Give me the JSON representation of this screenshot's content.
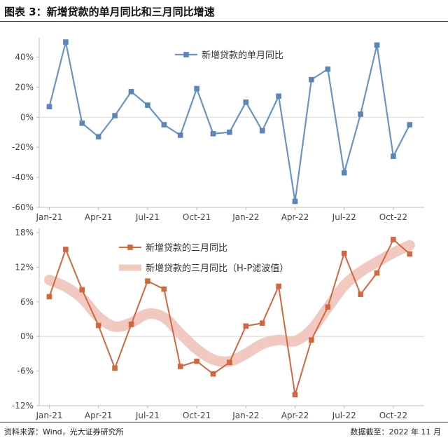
{
  "figure": {
    "title": "图表 3：新增贷款的单月同比和三月同比增速",
    "source": "资料来源：Wind，光大证券研究所",
    "date_note": "数据截至：2022 年 11 月"
  },
  "colors": {
    "top_series": "#6b93c3",
    "top_marker": "#5b84b8",
    "bottom_series": "#d2663f",
    "bottom_trend": "#f2c9c0"
  },
  "chart_data": [
    {
      "type": "line",
      "x": [
        "Jan-21",
        "Feb-21",
        "Mar-21",
        "Apr-21",
        "May-21",
        "Jun-21",
        "Jul-21",
        "Aug-21",
        "Sep-21",
        "Oct-21",
        "Nov-21",
        "Dec-21",
        "Jan-22",
        "Feb-22",
        "Mar-22",
        "Apr-22",
        "May-22",
        "Jun-22",
        "Jul-22",
        "Aug-22",
        "Sep-22",
        "Oct-22",
        "Nov-22"
      ],
      "x_tick_labels": [
        "Jan-21",
        "Apr-21",
        "Jul-21",
        "Oct-21",
        "Jan-22",
        "Apr-22",
        "Jul-22",
        "Oct-22"
      ],
      "series": [
        {
          "name": "新增贷款的单月同比",
          "values": [
            7,
            50,
            -4,
            -13,
            1,
            17,
            8,
            -5,
            -12,
            19,
            -11,
            -10,
            10,
            -9,
            14,
            -56,
            25,
            32,
            -37,
            2,
            48,
            -26,
            -5
          ]
        }
      ],
      "ylim": [
        -60,
        50
      ],
      "y_ticks": [
        -60,
        -40,
        -20,
        0,
        20,
        40
      ],
      "y_tick_labels": [
        "-60%",
        "-40%",
        "-20%",
        "0%",
        "20%",
        "40%"
      ],
      "legend_position": "top-center",
      "grid": false
    },
    {
      "type": "line",
      "x": [
        "Jan-21",
        "Feb-21",
        "Mar-21",
        "Apr-21",
        "May-21",
        "Jun-21",
        "Jul-21",
        "Aug-21",
        "Sep-21",
        "Oct-21",
        "Nov-21",
        "Dec-21",
        "Jan-22",
        "Feb-22",
        "Mar-22",
        "Apr-22",
        "May-22",
        "Jun-22",
        "Jul-22",
        "Aug-22",
        "Sep-22",
        "Oct-22",
        "Nov-22"
      ],
      "x_tick_labels": [
        "Jan-21",
        "Apr-21",
        "Jul-21",
        "Oct-21",
        "Jan-22",
        "Apr-22",
        "Jul-22",
        "Oct-22"
      ],
      "series": [
        {
          "name": "新增贷款的三月同比",
          "values": [
            6.9,
            15.1,
            8.1,
            1.9,
            -5.5,
            2.1,
            9.6,
            8.2,
            -5.2,
            -4.3,
            -6.5,
            -4.5,
            1.8,
            2.3,
            8.7,
            -10.1,
            -0.6,
            5.1,
            14.4,
            7.3,
            11.0,
            16.8,
            14.3
          ]
        },
        {
          "name": "新增贷款的三月同比（H-P滤波值）",
          "values": [
            9.8,
            8.6,
            6.6,
            3.4,
            1.7,
            2.4,
            3.9,
            3.3,
            0.5,
            -2.2,
            -4.0,
            -4.3,
            -3.0,
            -1.3,
            -0.6,
            -0.8,
            1.2,
            5.0,
            8.8,
            11.2,
            12.9,
            14.5,
            15.8
          ]
        }
      ],
      "ylim": [
        -12,
        18
      ],
      "y_ticks": [
        -12,
        -6,
        0,
        6,
        12,
        18
      ],
      "y_tick_labels": [
        "-12%",
        "-6%",
        "0%",
        "6%",
        "12%",
        "18%"
      ],
      "legend_position": "top-left",
      "grid": false
    }
  ]
}
